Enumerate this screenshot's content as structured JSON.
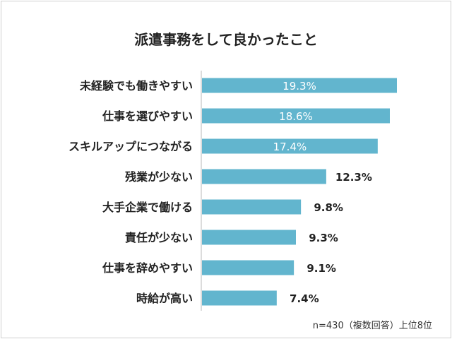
{
  "chart_data": {
    "type": "bar",
    "orientation": "horizontal",
    "title": "派遣事務をして良かったこと",
    "categories": [
      "未経験でも働きやすい",
      "仕事を選びやすい",
      "スキルアップにつながる",
      "残業が少ない",
      "大手企業で働ける",
      "責任が少ない",
      "仕事を辞めやすい",
      "時給が高い"
    ],
    "values": [
      19.3,
      18.6,
      17.4,
      12.3,
      9.8,
      9.3,
      9.1,
      7.4
    ],
    "value_labels": [
      "19.3%",
      "18.6%",
      "17.4%",
      "12.3%",
      "9.8%",
      "9.3%",
      "9.1%",
      "7.4%"
    ],
    "xlim": [
      0,
      19.3
    ],
    "grid": false,
    "bar_color": "#62b5ce",
    "note": "n=430（複数回答）上位8位"
  }
}
